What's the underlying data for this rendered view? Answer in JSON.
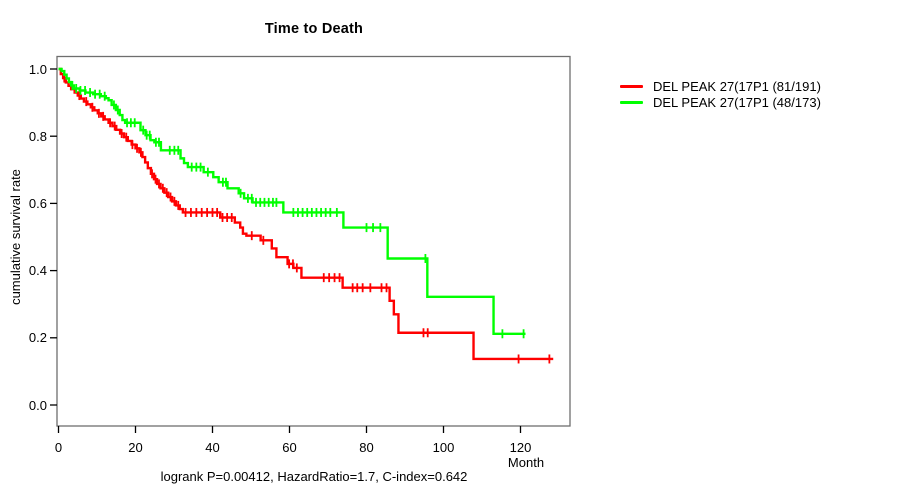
{
  "title": "Time to Death",
  "stats_line": "logrank P=0.00412, HazardRatio=1.7, C-index=0.642",
  "axes": {
    "x_label": "Month",
    "y_label": "cumulative survival rate",
    "x_ticks": [
      0,
      20,
      40,
      60,
      80,
      100,
      120
    ],
    "y_ticks": [
      "0.0",
      "0.2",
      "0.4",
      "0.6",
      "0.8",
      "1.0"
    ]
  },
  "legend": [
    {
      "label": "DEL PEAK 27(17P1 (81/191)",
      "color": "#ff0000"
    },
    {
      "label": "DEL PEAK 27(17P1 (48/173)",
      "color": "#00ff00"
    }
  ],
  "colors": {
    "curve_red": "#ff0000",
    "curve_green": "#00ff00",
    "box": "#6e6e6e",
    "tick": "#000000"
  },
  "chart_data": {
    "type": "line",
    "subtype": "kaplan-meier-step",
    "title": "Time to Death",
    "xlabel": "Month",
    "ylabel": "cumulative survival rate",
    "xlim": [
      0,
      133
    ],
    "ylim": [
      0,
      1.04
    ],
    "grid": false,
    "legend_position": "right-outside",
    "annotation": "logrank P=0.00412, HazardRatio=1.7, C-index=0.642",
    "series": [
      {
        "name": "DEL PEAK 27(17P1 (81/191)",
        "color": "#ff0000",
        "events_over_n": "81/191",
        "style": "step-after",
        "end_month": 128.5,
        "points": [
          [
            0,
            1.0
          ],
          [
            0.6,
            0.985
          ],
          [
            1.2,
            0.973
          ],
          [
            1.9,
            0.96
          ],
          [
            2.6,
            0.95
          ],
          [
            3.4,
            0.94
          ],
          [
            4.2,
            0.93
          ],
          [
            5,
            0.921
          ],
          [
            5.8,
            0.912
          ],
          [
            6.6,
            0.903
          ],
          [
            7.5,
            0.895
          ],
          [
            8.4,
            0.886
          ],
          [
            9.3,
            0.877
          ],
          [
            10.2,
            0.868
          ],
          [
            11.1,
            0.859
          ],
          [
            12,
            0.85
          ],
          [
            13,
            0.84
          ],
          [
            14,
            0.83
          ],
          [
            15,
            0.819
          ],
          [
            16,
            0.808
          ],
          [
            17,
            0.797
          ],
          [
            18,
            0.786
          ],
          [
            19,
            0.775
          ],
          [
            20,
            0.764
          ],
          [
            21,
            0.752
          ],
          [
            21.8,
            0.738
          ],
          [
            22.5,
            0.722
          ],
          [
            23.2,
            0.705
          ],
          [
            24,
            0.688
          ],
          [
            24.8,
            0.672
          ],
          [
            25.6,
            0.658
          ],
          [
            26.5,
            0.645
          ],
          [
            27.5,
            0.632
          ],
          [
            28.5,
            0.619
          ],
          [
            29.5,
            0.606
          ],
          [
            30.5,
            0.594
          ],
          [
            31.5,
            0.583
          ],
          [
            32.3,
            0.573
          ],
          [
            42,
            0.558
          ],
          [
            45.8,
            0.543
          ],
          [
            47.2,
            0.528
          ],
          [
            47.9,
            0.51
          ],
          [
            48.8,
            0.504
          ],
          [
            52.5,
            0.49
          ],
          [
            55.4,
            0.466
          ],
          [
            56.6,
            0.44
          ],
          [
            59.5,
            0.42
          ],
          [
            61,
            0.408
          ],
          [
            63.1,
            0.379
          ],
          [
            73.8,
            0.349
          ],
          [
            86,
            0.31
          ],
          [
            87.1,
            0.27
          ],
          [
            88.3,
            0.215
          ],
          [
            107.8,
            0.137
          ]
        ],
        "censor_months": [
          1.5,
          3.2,
          5.4,
          7.2,
          8.8,
          10.5,
          11.6,
          13.4,
          14.6,
          16.4,
          17.6,
          19.2,
          20.4,
          21.4,
          24.3,
          25.2,
          26.1,
          27.1,
          28.1,
          29.1,
          30.1,
          31.1,
          33,
          34.4,
          35.8,
          37.2,
          38.6,
          40,
          41.2,
          42.6,
          43.8,
          45,
          50.2,
          53.2,
          59.9,
          60.9,
          61.9,
          68.9,
          70.3,
          71.7,
          73,
          76.4,
          77.6,
          79,
          81,
          83.9,
          85.2,
          94.8,
          95.9,
          119.5,
          127.5
        ]
      },
      {
        "name": "DEL PEAK 27(17P1 (48/173)",
        "color": "#00ff00",
        "events_over_n": "48/173",
        "style": "step-after",
        "end_month": 121.3,
        "points": [
          [
            0,
            1.0
          ],
          [
            0.8,
            0.994
          ],
          [
            1.5,
            0.983
          ],
          [
            2.1,
            0.972
          ],
          [
            2.7,
            0.961
          ],
          [
            3.3,
            0.951
          ],
          [
            4,
            0.942
          ],
          [
            5.5,
            0.936
          ],
          [
            7,
            0.93
          ],
          [
            9,
            0.925
          ],
          [
            11,
            0.919
          ],
          [
            12.3,
            0.913
          ],
          [
            13,
            0.907
          ],
          [
            13.8,
            0.893
          ],
          [
            14.9,
            0.878
          ],
          [
            15.9,
            0.863
          ],
          [
            16.6,
            0.848
          ],
          [
            17.3,
            0.84
          ],
          [
            21.3,
            0.818
          ],
          [
            22.6,
            0.803
          ],
          [
            23.9,
            0.788
          ],
          [
            24.9,
            0.782
          ],
          [
            26.6,
            0.758
          ],
          [
            31.7,
            0.734
          ],
          [
            32.6,
            0.72
          ],
          [
            33.6,
            0.708
          ],
          [
            37.7,
            0.693
          ],
          [
            40.2,
            0.678
          ],
          [
            41.6,
            0.663
          ],
          [
            43.9,
            0.645
          ],
          [
            46.8,
            0.63
          ],
          [
            48.2,
            0.615
          ],
          [
            50.4,
            0.603
          ],
          [
            58.4,
            0.573
          ],
          [
            74,
            0.528
          ],
          [
            85.5,
            0.436
          ],
          [
            95.8,
            0.322
          ],
          [
            113,
            0.212
          ]
        ],
        "censor_months": [
          3.6,
          4.6,
          5.7,
          6.9,
          8.2,
          9.5,
          10.7,
          12,
          14.4,
          15.4,
          17.8,
          18.8,
          19.8,
          22,
          22.9,
          23.7,
          25.3,
          26.1,
          28.9,
          30.1,
          31.1,
          34.6,
          35.8,
          36.9,
          38.8,
          42.7,
          43.5,
          47.3,
          49.2,
          50.2,
          51.3,
          52.4,
          53.5,
          54.6,
          55.7,
          56.6,
          61,
          62.2,
          63.4,
          64.6,
          65.8,
          67,
          68.2,
          69.4,
          70.6,
          72.3,
          80,
          81.7,
          83.6,
          95.3,
          115.3,
          120.8
        ]
      }
    ]
  }
}
